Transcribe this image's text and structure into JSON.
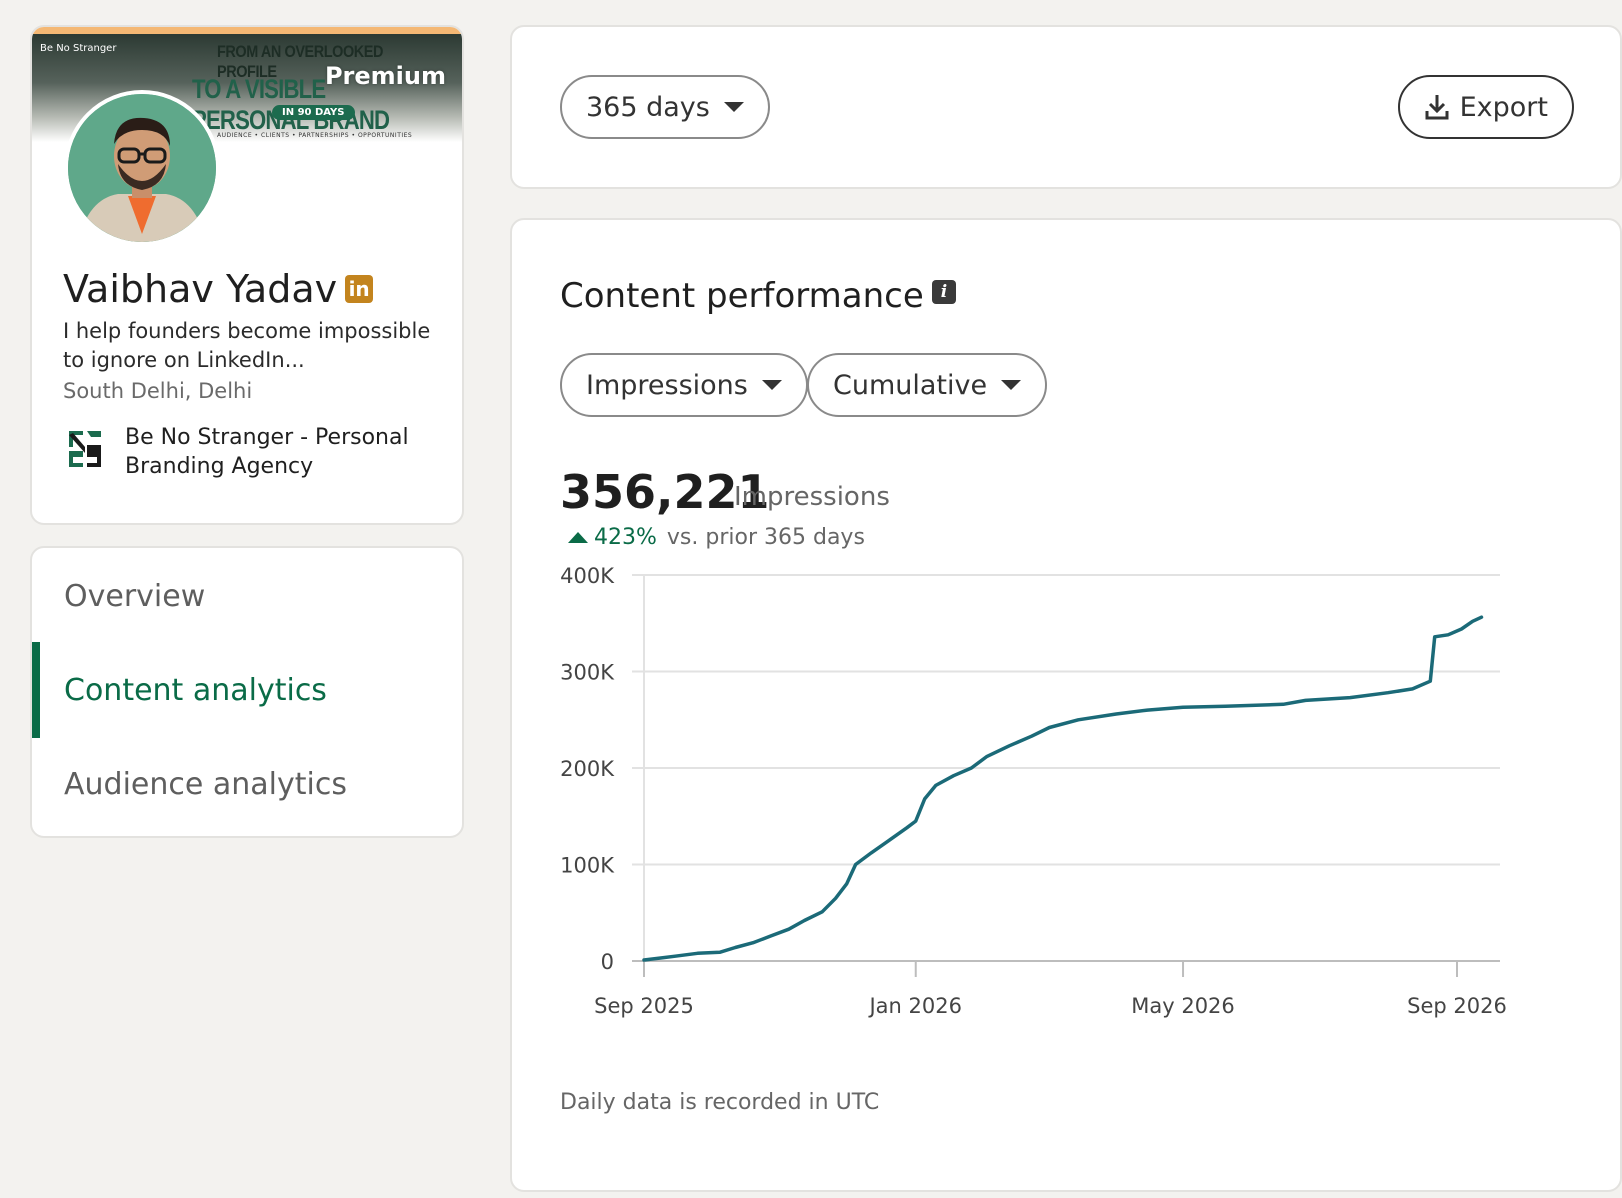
{
  "profile": {
    "banner": {
      "brand": "Be No Stranger",
      "line1": "FROM AN OVERLOOKED PROFILE",
      "line2": "TO A VISIBLE PERSONAL BRAND",
      "pill": "IN 90 DAYS",
      "tags": "AUDIENCE  •  CLIENTS  •  PARTNERSHIPS  •  OPPORTUNITIES"
    },
    "premium_label": "Premium",
    "name": "Vaibhav Yadav",
    "badge": "in",
    "headline": "I help founders become impossible to ignore on LinkedIn...",
    "location": "South Delhi, Delhi",
    "company": "Be No Stranger - Personal Branding Agency"
  },
  "nav": {
    "items": [
      {
        "label": "Overview",
        "active": false
      },
      {
        "label": "Content analytics",
        "active": true
      },
      {
        "label": "Audience analytics",
        "active": false
      }
    ]
  },
  "filters": {
    "range": "365 days",
    "export": "Export"
  },
  "performance": {
    "title": "Content performance",
    "info": "i",
    "metric": "Impressions",
    "mode": "Cumulative",
    "total": "356,221",
    "total_unit": "Impressions",
    "delta": "423%",
    "delta_text": "vs. prior 365 days",
    "footnote": "Daily data is recorded in UTC"
  },
  "colors": {
    "accent": "#0a6b47",
    "line": "#1b6a78",
    "premium_badge": "#c3841e"
  },
  "chart_data": {
    "type": "line",
    "title": "",
    "xlabel": "",
    "ylabel": "",
    "ylim": [
      0,
      400000
    ],
    "yticks": [
      0,
      100000,
      200000,
      300000,
      400000
    ],
    "ytick_labels": [
      "0",
      "100K",
      "200K",
      "300K",
      "400K"
    ],
    "xtick_labels": [
      "Sep 2025",
      "Jan 2026",
      "May 2026",
      "Sep 2026"
    ],
    "xtick_dates": [
      "2025-09-01",
      "2026-01-01",
      "2026-05-01",
      "2026-09-01"
    ],
    "grid": true,
    "series": [
      {
        "values": [
          [
            "2025-09-01",
            1000
          ],
          [
            "2025-09-08",
            3000
          ],
          [
            "2025-09-15",
            5000
          ],
          [
            "2025-09-25",
            8000
          ],
          [
            "2025-10-05",
            9000
          ],
          [
            "2025-10-12",
            14000
          ],
          [
            "2025-10-20",
            19000
          ],
          [
            "2025-10-28",
            26000
          ],
          [
            "2025-11-05",
            33000
          ],
          [
            "2025-11-12",
            42000
          ],
          [
            "2025-11-20",
            51000
          ],
          [
            "2025-11-26",
            65000
          ],
          [
            "2025-12-01",
            80000
          ],
          [
            "2025-12-05",
            100000
          ],
          [
            "2025-12-12",
            112000
          ],
          [
            "2025-12-20",
            125000
          ],
          [
            "2025-12-28",
            138000
          ],
          [
            "2026-01-01",
            145000
          ],
          [
            "2026-01-05",
            168000
          ],
          [
            "2026-01-10",
            182000
          ],
          [
            "2026-01-18",
            192000
          ],
          [
            "2026-01-26",
            200000
          ],
          [
            "2026-02-02",
            212000
          ],
          [
            "2026-02-12",
            223000
          ],
          [
            "2026-02-22",
            233000
          ],
          [
            "2026-03-02",
            242000
          ],
          [
            "2026-03-15",
            250000
          ],
          [
            "2026-04-01",
            256000
          ],
          [
            "2026-04-15",
            260000
          ],
          [
            "2026-05-01",
            263000
          ],
          [
            "2026-05-20",
            264000
          ],
          [
            "2026-06-15",
            266000
          ],
          [
            "2026-06-25",
            270000
          ],
          [
            "2026-07-15",
            273000
          ],
          [
            "2026-08-01",
            278000
          ],
          [
            "2026-08-12",
            282000
          ],
          [
            "2026-08-20",
            290000
          ],
          [
            "2026-08-22",
            336000
          ],
          [
            "2026-08-28",
            338000
          ],
          [
            "2026-09-03",
            344000
          ],
          [
            "2026-09-08",
            352000
          ],
          [
            "2026-09-12",
            356221
          ]
        ]
      }
    ]
  }
}
